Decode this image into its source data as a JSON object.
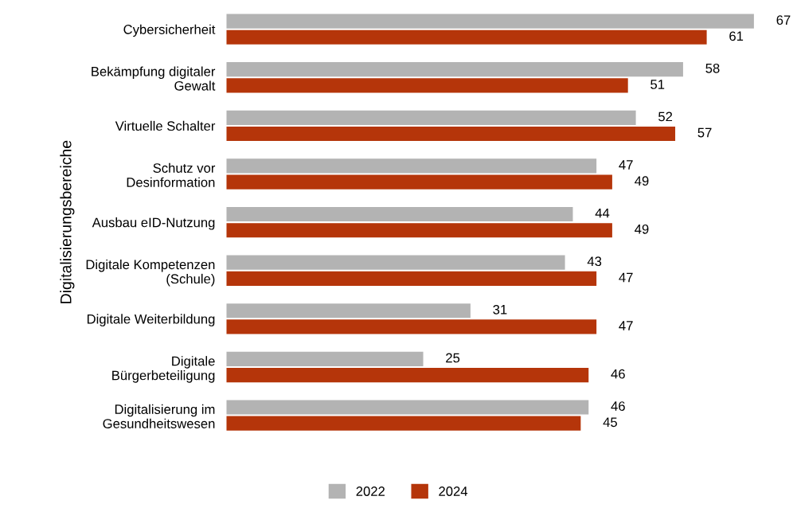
{
  "chart_data": {
    "type": "bar",
    "orientation": "horizontal",
    "ylabel": "Digitalisierungsbereiche",
    "categories": [
      "Cybersicherheit",
      "Bekämpfung digitaler\nGewalt",
      "Virtuelle Schalter",
      "Schutz vor\nDesinformation",
      "Ausbau eID-Nutzung",
      "Digitale Kompetenzen\n(Schule)",
      "Digitale Weiterbildung",
      "Digitale\nBürgerbeteiligung",
      "Digitalisierung im\nGesundheitswesen"
    ],
    "series": [
      {
        "name": "2022",
        "color": "#b3b3b3",
        "values": [
          67,
          58,
          52,
          47,
          44,
          43,
          31,
          25,
          46
        ]
      },
      {
        "name": "2024",
        "color": "#b5350a",
        "values": [
          61,
          51,
          57,
          49,
          49,
          47,
          47,
          46,
          45
        ]
      }
    ],
    "data_labels": true,
    "legend": "bottom",
    "grid": false
  }
}
